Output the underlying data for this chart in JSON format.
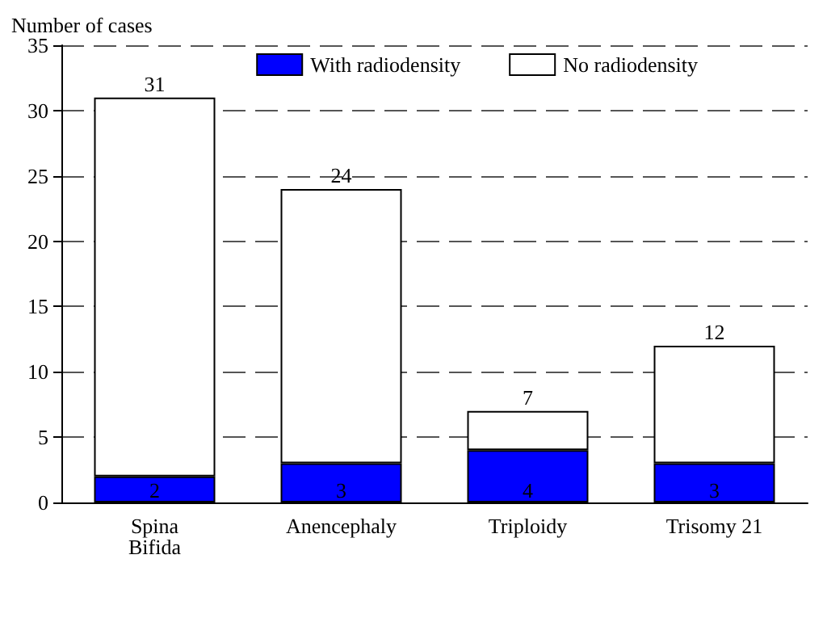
{
  "chart_data": {
    "type": "bar",
    "ylabel": "Number of cases",
    "categories": [
      "Spina\nBifida",
      "Anencephaly",
      "Triploidy",
      "Trisomy 21"
    ],
    "series": [
      {
        "name": "With radiodensity",
        "color": "#0000ff",
        "values": [
          2,
          3,
          4,
          3
        ],
        "value_labels": [
          "2",
          "3",
          "4",
          "3"
        ]
      },
      {
        "name": "No radiodensity",
        "color": "#ffffff",
        "values": [
          29,
          21,
          3,
          9
        ]
      }
    ],
    "stacked": true,
    "totals": [
      "31",
      "24",
      "7",
      "12"
    ],
    "ylim": [
      0,
      35
    ],
    "yticks": [
      0,
      5,
      10,
      15,
      20,
      25,
      30,
      35
    ],
    "grid": "y",
    "legend": "top right"
  }
}
